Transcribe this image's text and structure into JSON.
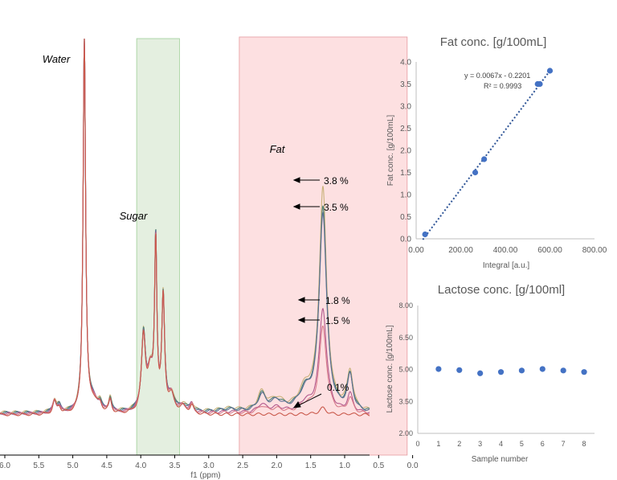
{
  "colors": {
    "sugar_region": "#e4efe0",
    "fat_region": "#fde0e1",
    "trend": "#2f5597",
    "point": "#4472c4"
  },
  "chart_data": [
    {
      "type": "line",
      "kind": "nmr-spectrum",
      "xlabel": "f1 (ppm)",
      "xlim": [
        6.0,
        -0.2
      ],
      "reversed_x": true,
      "x_ticks": [
        "6.0",
        "5.5",
        "5.0",
        "4.5",
        "4.0",
        "3.5",
        "3.0",
        "2.5",
        "2.0",
        "1.5",
        "1.0",
        "0.5",
        "0.0"
      ],
      "regions": [
        {
          "label": "Sugar",
          "from": 4.06,
          "to": 3.43
        },
        {
          "label": "Fat",
          "from": 2.55,
          "to": 0.08
        }
      ],
      "annotations": [
        {
          "label": "Water",
          "x": 4.83
        },
        {
          "label": "Sugar",
          "x": 3.8
        },
        {
          "label": "Fat",
          "x": 1.32
        }
      ],
      "peak_labels": [
        "3.8 %",
        "3.5 %",
        "1.8 %",
        "1.5 %",
        "0.1%"
      ],
      "fat_scale": [
        1.0,
        0.92,
        0.47,
        0.39,
        0.03
      ],
      "series_colors": [
        "#c9b27a",
        "#4a7f74",
        "#5a6e93",
        "#b25a8e",
        "#d87a8a",
        "#c9584a"
      ]
    },
    {
      "type": "scatter",
      "title": "Fat conc. [g/100mL]",
      "xlabel": "Integral [a.u.]",
      "ylabel": "Fat conc. [g/100mL]",
      "xlim": [
        0,
        800
      ],
      "ylim": [
        0,
        4
      ],
      "x_ticks": [
        "0.00",
        "200.00",
        "400.00",
        "600.00",
        "800.00"
      ],
      "y_ticks": [
        "0.0",
        "0.5",
        "1.0",
        "1.5",
        "2.0",
        "2.5",
        "3.0",
        "3.5",
        "4.0"
      ],
      "points": [
        {
          "x": 40,
          "y": 0.1
        },
        {
          "x": 265,
          "y": 1.5
        },
        {
          "x": 305,
          "y": 1.8
        },
        {
          "x": 545,
          "y": 3.5
        },
        {
          "x": 555,
          "y": 3.5
        },
        {
          "x": 600,
          "y": 3.8
        }
      ],
      "trendline": {
        "slope": 0.0067,
        "intercept": -0.2201,
        "x_from": 30,
        "x_to": 600
      },
      "equation": "y = 0.0067x - 0.2201",
      "r_squared": "R² = 0.9993"
    },
    {
      "type": "scatter",
      "title": "Lactose conc. [g/100ml]",
      "xlabel": "Sample number",
      "ylabel": "Lactose conc. [g/100mL]",
      "xlim": [
        0,
        8.5
      ],
      "ylim": [
        2,
        8
      ],
      "x_ticks": [
        "0",
        "1",
        "2",
        "3",
        "4",
        "5",
        "6",
        "7",
        "8"
      ],
      "y_ticks": [
        "2.00",
        "3.50",
        "5.00",
        "6.50",
        "8.00"
      ],
      "points": [
        {
          "x": 1,
          "y": 5.02
        },
        {
          "x": 2,
          "y": 4.97
        },
        {
          "x": 3,
          "y": 4.82
        },
        {
          "x": 4,
          "y": 4.88
        },
        {
          "x": 5,
          "y": 4.95
        },
        {
          "x": 6,
          "y": 5.02
        },
        {
          "x": 7,
          "y": 4.95
        },
        {
          "x": 8,
          "y": 4.88
        }
      ]
    }
  ]
}
